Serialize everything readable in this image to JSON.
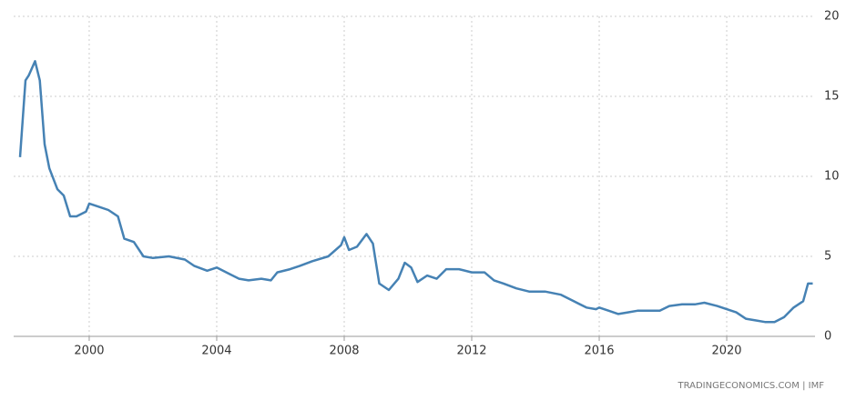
{
  "chart_data": {
    "type": "line",
    "source": "TRADINGECONOMICS.COM | IMF",
    "x": [
      1997.83,
      1998.0,
      1998.1,
      1998.3,
      1998.45,
      1998.6,
      1998.75,
      1999.0,
      1999.2,
      1999.4,
      1999.6,
      1999.9,
      2000.0,
      2000.3,
      2000.6,
      2000.9,
      2001.1,
      2001.4,
      2001.7,
      2002.0,
      2002.5,
      2003.0,
      2003.3,
      2003.7,
      2004.0,
      2004.4,
      2004.7,
      2005.0,
      2005.4,
      2005.7,
      2005.9,
      2006.3,
      2006.6,
      2007.0,
      2007.5,
      2007.9,
      2008.0,
      2008.15,
      2008.4,
      2008.7,
      2008.9,
      2009.1,
      2009.4,
      2009.7,
      2009.9,
      2010.1,
      2010.3,
      2010.6,
      2010.9,
      2011.2,
      2011.6,
      2012.0,
      2012.4,
      2012.7,
      2013.0,
      2013.4,
      2013.8,
      2014.3,
      2014.8,
      2015.2,
      2015.6,
      2015.9,
      2016.0,
      2016.3,
      2016.6,
      2016.9,
      2017.2,
      2017.6,
      2017.9,
      2018.2,
      2018.6,
      2019.0,
      2019.3,
      2019.7,
      2020.0,
      2020.3,
      2020.6,
      2020.9,
      2021.2,
      2021.5,
      2021.8,
      2022.1,
      2022.4,
      2022.55,
      2022.7
    ],
    "series": [
      {
        "color": "#4682b4",
        "values": [
          11.2,
          16.0,
          16.3,
          17.2,
          16.0,
          12.0,
          10.5,
          9.2,
          8.8,
          7.5,
          7.5,
          7.8,
          8.3,
          8.1,
          7.9,
          7.5,
          6.1,
          5.9,
          5.0,
          4.9,
          5.0,
          4.8,
          4.4,
          4.1,
          4.3,
          3.9,
          3.6,
          3.5,
          3.6,
          3.5,
          4.0,
          4.2,
          4.4,
          4.7,
          5.0,
          5.7,
          6.2,
          5.4,
          5.6,
          6.4,
          5.8,
          3.3,
          2.9,
          3.6,
          4.6,
          4.3,
          3.4,
          3.8,
          3.6,
          4.2,
          4.2,
          4.0,
          4.0,
          3.5,
          3.3,
          3.0,
          2.8,
          2.8,
          2.6,
          2.2,
          1.8,
          1.7,
          1.8,
          1.6,
          1.4,
          1.5,
          1.6,
          1.6,
          1.6,
          1.9,
          2.0,
          2.0,
          2.1,
          1.9,
          1.7,
          1.5,
          1.1,
          1.0,
          0.9,
          0.9,
          1.2,
          1.8,
          2.2,
          3.3,
          3.3
        ]
      }
    ],
    "xlim": [
      1997.63,
      2022.77
    ],
    "xticks": [
      2000,
      2004,
      2008,
      2012,
      2016,
      2020
    ],
    "ylim": [
      0,
      20
    ],
    "yticks": [
      0,
      5,
      10,
      15,
      20
    ],
    "grid": true
  }
}
